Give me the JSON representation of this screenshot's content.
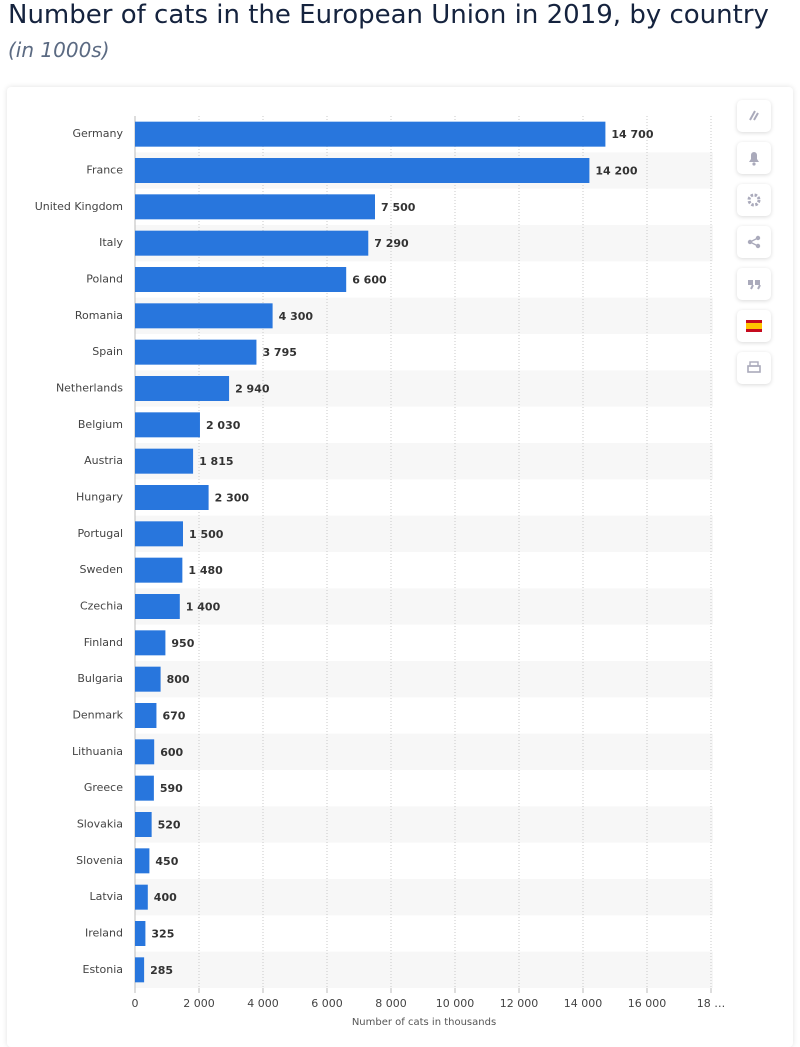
{
  "chart_data": {
    "type": "bar",
    "orientation": "horizontal",
    "title": "Number of cats in the European Union in 2019, by country",
    "subtitle": "(in 1000s)",
    "x_label": "Number of cats in thousands",
    "categories": [
      "Germany",
      "France",
      "United Kingdom",
      "Italy",
      "Poland",
      "Romania",
      "Spain",
      "Netherlands",
      "Belgium",
      "Austria",
      "Hungary",
      "Portugal",
      "Sweden",
      "Czechia",
      "Finland",
      "Bulgaria",
      "Denmark",
      "Lithuania",
      "Greece",
      "Slovakia",
      "Slovenia",
      "Latvia",
      "Ireland",
      "Estonia"
    ],
    "values": [
      14700,
      14200,
      7500,
      7290,
      6600,
      4300,
      3795,
      2940,
      2030,
      1815,
      2300,
      1500,
      1480,
      1400,
      950,
      800,
      670,
      600,
      590,
      520,
      450,
      400,
      325,
      285
    ],
    "value_labels": [
      "14 700",
      "14 200",
      "7 500",
      "7 290",
      "6 600",
      "4 300",
      "3 795",
      "2 940",
      "2 030",
      "1 815",
      "2 300",
      "1 500",
      "1 480",
      "1 400",
      "950",
      "800",
      "670",
      "600",
      "590",
      "520",
      "450",
      "400",
      "325",
      "285"
    ],
    "color": "#2876dd",
    "xlim": [
      0,
      18000
    ],
    "xticks": [
      0,
      {
        "value": 2000,
        "label": "2 000"
      },
      {
        "value": 4000,
        "label": "4 000"
      },
      {
        "value": 6000,
        "label": "6 000"
      },
      {
        "value": 8000,
        "label": "8 000"
      },
      {
        "value": 10000,
        "label": "10 000"
      },
      {
        "value": 12000,
        "label": "12 000"
      },
      {
        "value": 14000,
        "label": "14 000"
      },
      {
        "value": 16000,
        "label": "16 000"
      },
      {
        "value": 18000,
        "label": "18 …"
      }
    ],
    "grid": true
  }
}
